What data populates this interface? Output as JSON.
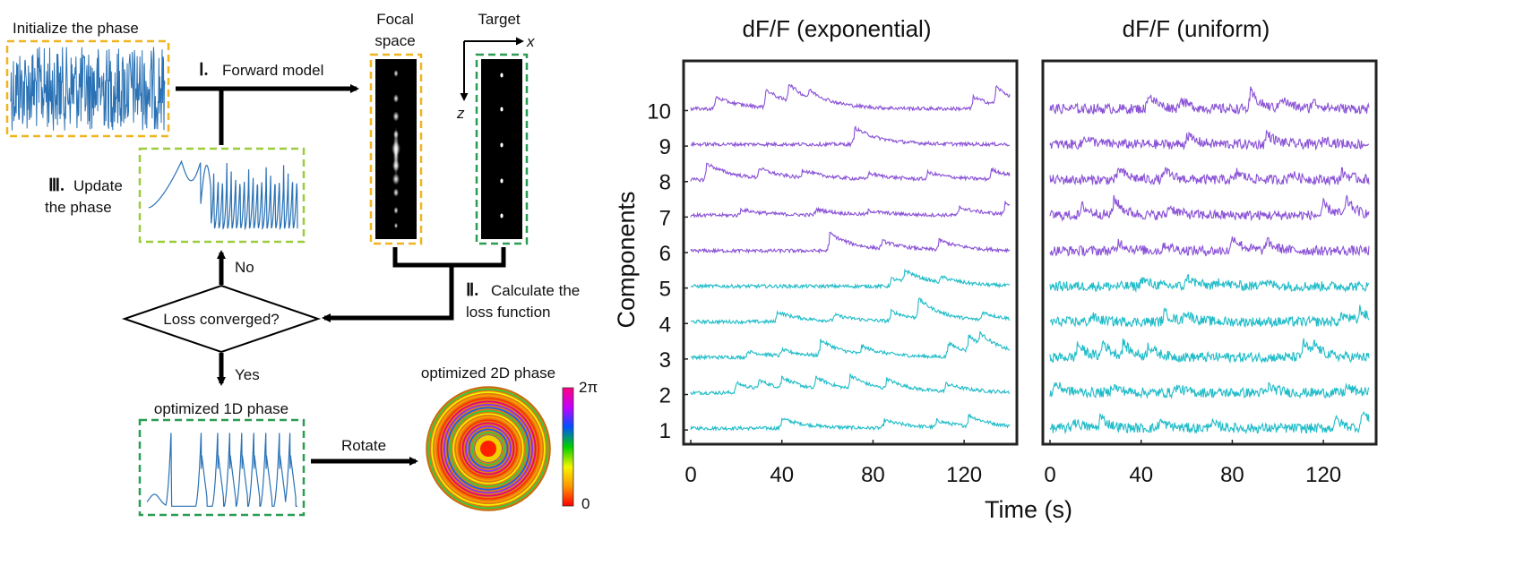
{
  "left_panel": {
    "init_label": "Initialize the phase",
    "forward_numeral": "Ⅰ.",
    "forward_label": "Forward model",
    "focal_label_line1": "Focal",
    "focal_label_line2": "space",
    "target_label": "Target",
    "x_axis_letter": "x",
    "z_axis_letter": "z",
    "update_numeral": "Ⅲ.",
    "update_label_line1": "Update",
    "update_label_line2": "the phase",
    "no_label": "No",
    "calc_numeral": "Ⅱ.",
    "calc_label_line1": "Calculate the",
    "calc_label_line2": "loss function",
    "decision_label": "Loss converged?",
    "yes_label": "Yes",
    "opt1d_label": "optimized 1D phase",
    "rotate_label": "Rotate",
    "opt2d_label": "optimized 2D phase",
    "colorbar_max": "2π",
    "colorbar_min": "0"
  },
  "colors": {
    "init_box": "#f0b41e",
    "focal_box": "#f0b41e",
    "target_box": "#2a9d53",
    "update_box": "#9ccc3c",
    "opt1d_box": "#2a9d53",
    "phase_trace": "#2a72b5",
    "purple_trace": "#8a52d6",
    "cyan_trace": "#20bcc8",
    "arrow": "#000000"
  },
  "chart_data": [
    {
      "type": "line",
      "title": "dF/F (exponential)",
      "xlabel": "Time (s)",
      "ylabel": "Components",
      "x_ticks": [
        0,
        40,
        80,
        120
      ],
      "y_ticks": [
        1,
        2,
        3,
        4,
        5,
        6,
        7,
        8,
        9,
        10
      ],
      "xlim": [
        0,
        140
      ],
      "ylim": [
        0.6,
        11.4
      ],
      "grid": false,
      "series": [
        {
          "component": 1,
          "color": "cyan",
          "events": [
            [
              40,
              0.5
            ],
            [
              85,
              0.4
            ],
            [
              108,
              0.35
            ],
            [
              122,
              0.55
            ]
          ]
        },
        {
          "component": 2,
          "color": "cyan",
          "events": [
            [
              20,
              0.5
            ],
            [
              30,
              0.45
            ],
            [
              40,
              0.55
            ],
            [
              55,
              0.6
            ],
            [
              70,
              0.7
            ],
            [
              86,
              0.5
            ],
            [
              112,
              0.4
            ]
          ]
        },
        {
          "component": 3,
          "color": "cyan",
          "events": [
            [
              25,
              0.3
            ],
            [
              40,
              0.3
            ],
            [
              57,
              0.8
            ],
            [
              75,
              0.4
            ],
            [
              113,
              0.7
            ],
            [
              122,
              0.8
            ],
            [
              127,
              0.55
            ]
          ]
        },
        {
          "component": 4,
          "color": "cyan",
          "events": [
            [
              38,
              0.5
            ],
            [
              63,
              0.3
            ],
            [
              88,
              0.5
            ],
            [
              100,
              1.0
            ],
            [
              128,
              0.4
            ]
          ]
        },
        {
          "component": 5,
          "color": "cyan",
          "events": [
            [
              88,
              0.4
            ],
            [
              94,
              0.6
            ],
            [
              110,
              0.3
            ]
          ]
        },
        {
          "component": 6,
          "color": "purple",
          "events": [
            [
              61,
              0.9
            ],
            [
              84,
              0.4
            ],
            [
              109,
              0.5
            ]
          ]
        },
        {
          "component": 7,
          "color": "purple",
          "events": [
            [
              22,
              0.3
            ],
            [
              55,
              0.3
            ],
            [
              78,
              0.2
            ],
            [
              118,
              0.4
            ],
            [
              138,
              0.6
            ]
          ]
        },
        {
          "component": 8,
          "color": "purple",
          "events": [
            [
              7,
              0.85
            ],
            [
              30,
              0.5
            ],
            [
              49,
              0.4
            ],
            [
              78,
              0.3
            ],
            [
              104,
              0.35
            ],
            [
              132,
              0.5
            ]
          ]
        },
        {
          "component": 9,
          "color": "purple",
          "events": [
            [
              72,
              0.85
            ]
          ]
        },
        {
          "component": 10,
          "color": "purple",
          "events": [
            [
              11,
              0.6
            ],
            [
              33,
              0.9
            ],
            [
              43,
              0.9
            ],
            [
              52,
              0.4
            ],
            [
              124,
              0.6
            ],
            [
              134,
              0.9
            ]
          ]
        }
      ]
    },
    {
      "type": "line",
      "title": "dF/F (uniform)",
      "xlabel": "Time (s)",
      "x_ticks": [
        0,
        40,
        80,
        120
      ],
      "xlim": [
        0,
        140
      ],
      "ylim": [
        0.6,
        11.4
      ],
      "grid": false,
      "series": [
        {
          "component": 1,
          "color": "cyan",
          "events": [
            [
              10,
              0.4
            ],
            [
              22,
              0.6
            ],
            [
              48,
              0.4
            ],
            [
              70,
              0.3
            ],
            [
              125,
              0.5
            ],
            [
              137,
              0.9
            ]
          ]
        },
        {
          "component": 2,
          "color": "cyan",
          "events": [
            [
              2,
              0.5
            ],
            [
              27,
              0.4
            ],
            [
              55,
              0.3
            ],
            [
              96,
              0.35
            ],
            [
              130,
              0.3
            ]
          ]
        },
        {
          "component": 3,
          "color": "cyan",
          "events": [
            [
              12,
              0.7
            ],
            [
              23,
              0.8
            ],
            [
              32,
              0.7
            ],
            [
              43,
              0.6
            ],
            [
              111,
              0.8
            ],
            [
              116,
              0.5
            ]
          ]
        },
        {
          "component": 4,
          "color": "cyan",
          "events": [
            [
              18,
              0.3
            ],
            [
              50,
              0.5
            ],
            [
              59,
              0.5
            ],
            [
              128,
              0.4
            ],
            [
              136,
              0.6
            ]
          ]
        },
        {
          "component": 5,
          "color": "cyan",
          "events": [
            [
              40,
              0.4
            ],
            [
              60,
              0.5
            ],
            [
              74,
              0.3
            ],
            [
              92,
              0.35
            ]
          ]
        },
        {
          "component": 6,
          "color": "purple",
          "events": [
            [
              30,
              0.5
            ],
            [
              50,
              0.35
            ],
            [
              80,
              0.8
            ],
            [
              95,
              0.5
            ]
          ]
        },
        {
          "component": 7,
          "color": "purple",
          "events": [
            [
              14,
              0.5
            ],
            [
              28,
              0.9
            ],
            [
              52,
              0.5
            ],
            [
              120,
              0.6
            ],
            [
              130,
              0.8
            ]
          ]
        },
        {
          "component": 8,
          "color": "purple",
          "events": [
            [
              30,
              0.6
            ],
            [
              50,
              0.5
            ],
            [
              82,
              0.4
            ],
            [
              105,
              0.35
            ],
            [
              128,
              0.4
            ]
          ]
        },
        {
          "component": 9,
          "color": "purple",
          "events": [
            [
              15,
              0.4
            ],
            [
              60,
              0.5
            ],
            [
              95,
              0.6
            ],
            [
              120,
              0.3
            ]
          ]
        },
        {
          "component": 10,
          "color": "purple",
          "events": [
            [
              43,
              0.8
            ],
            [
              57,
              0.5
            ],
            [
              88,
              0.9
            ],
            [
              101,
              0.6
            ],
            [
              115,
              0.4
            ]
          ]
        }
      ]
    }
  ]
}
